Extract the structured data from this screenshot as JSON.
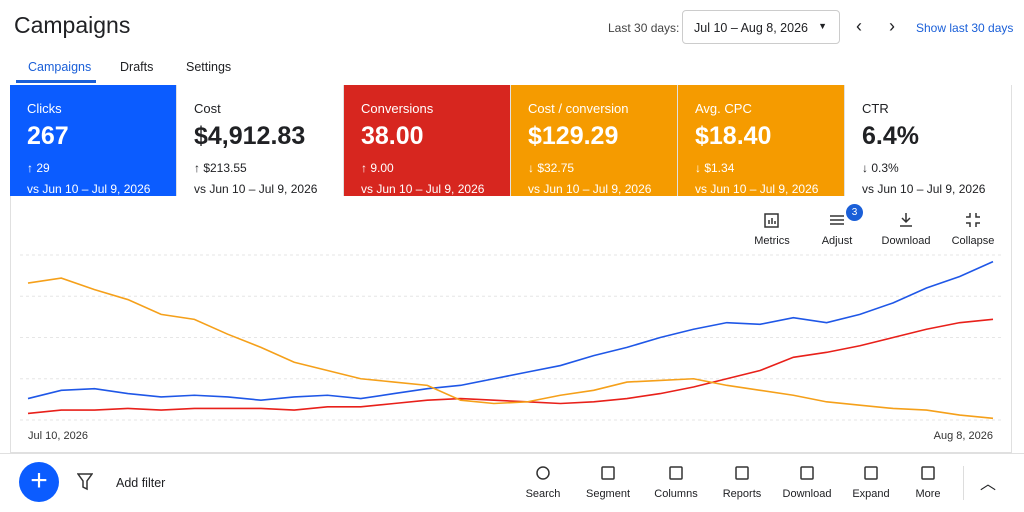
{
  "header": {
    "title": "Campaigns",
    "date_label": "Last 30 days:",
    "date_range": "Jul 10 – Aug 8, 2026",
    "show_last": "Show last 30 days"
  },
  "tabs": [
    "Campaigns",
    "Drafts",
    "Settings"
  ],
  "cards": [
    {
      "label": "Clicks",
      "value": "267",
      "change": "↑ 29",
      "compare": "vs Jun 10 – Jul 9, 2026",
      "color": "#0b5cff"
    },
    {
      "label": "Cost",
      "value": "$4,912.83",
      "change": "↑ $213.55",
      "compare": "vs Jun 10 – Jul 9, 2026",
      "color": "#ffffff"
    },
    {
      "label": "Conversions",
      "value": "38.00",
      "change": "↑ 9.00",
      "compare": "vs Jun 10 – Jul 9, 2026",
      "color": "#d7261f"
    },
    {
      "label": "Cost / conversion",
      "value": "$129.29",
      "change": "↓ $32.75",
      "compare": "vs Jun 10 – Jul 9, 2026",
      "color": "#f59b00"
    },
    {
      "label": "Avg. CPC",
      "value": "$18.40",
      "change": "↓ $1.34",
      "compare": "vs Jun 10 – Jul 9, 2026",
      "color": "#f59b00"
    },
    {
      "label": "CTR",
      "value": "6.4%",
      "change": "↓ 0.3%",
      "compare": "vs Jun 10 – Jul 9, 2026",
      "color": "#ffffff"
    }
  ],
  "chart_tools": [
    "Metrics",
    "Adjust",
    "Download",
    "Collapse"
  ],
  "adjust_badge": "3",
  "bottom": {
    "add_filter": "Add filter",
    "tools": [
      "Search",
      "Segment",
      "Columns",
      "Reports",
      "Download",
      "Expand",
      "More"
    ]
  },
  "chart_data": {
    "type": "line",
    "categories": [
      "Jul 10, 2026",
      null,
      null,
      null,
      null,
      null,
      null,
      null,
      null,
      null,
      null,
      null,
      null,
      null,
      null,
      null,
      null,
      null,
      null,
      null,
      null,
      null,
      null,
      null,
      null,
      null,
      null,
      null,
      null,
      "Aug 8, 2026"
    ],
    "ylim": [
      0,
      100
    ],
    "grid": true,
    "series": [
      {
        "color": "#1f57e7",
        "values": [
          13,
          18,
          19,
          16,
          14,
          15,
          14,
          12,
          14,
          15,
          13,
          16,
          19,
          21,
          25,
          29,
          33,
          39,
          44,
          50,
          55,
          59,
          58,
          62,
          59,
          64,
          71,
          80,
          87,
          96
        ]
      },
      {
        "color": "#e8201a",
        "values": [
          4,
          6,
          6,
          7,
          6,
          7,
          7,
          7,
          6,
          8,
          8,
          10,
          12,
          13,
          12,
          11,
          10,
          11,
          13,
          16,
          20,
          25,
          30,
          38,
          41,
          45,
          50,
          55,
          59,
          61
        ]
      },
      {
        "color": "#f5a01a",
        "values": [
          83,
          86,
          79,
          73,
          64,
          61,
          52,
          44,
          35,
          30,
          25,
          23,
          21,
          12,
          10,
          11,
          15,
          18,
          23,
          24,
          25,
          21,
          18,
          15,
          11,
          9,
          7,
          6,
          3,
          1
        ]
      }
    ]
  }
}
